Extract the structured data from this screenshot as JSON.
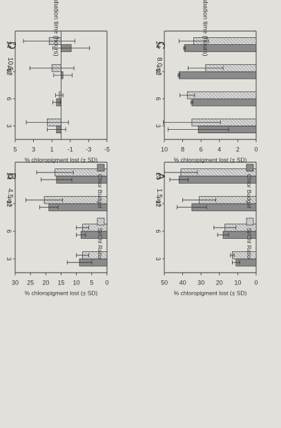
{
  "colors": {
    "gray_bar": "#8a8a8a",
    "hatch_bar": "#cfcfcf",
    "ink": "#333333",
    "paper": "#e2e0da"
  },
  "chart_data": [
    {
      "type": "bar",
      "panel": "A",
      "concentration": "1.5",
      "unit": "µg/l",
      "categories": [
        "3",
        "6",
        "12",
        "24"
      ],
      "series": [
        {
          "name": "Chlor Budget",
          "values": [
            11,
            18,
            35,
            42
          ],
          "err": [
            2,
            3,
            8,
            5
          ]
        },
        {
          "name": "Si/Chl Ratio",
          "values": [
            13,
            17,
            31,
            41
          ],
          "err": [
            1,
            6,
            9,
            9
          ]
        }
      ],
      "ylim": [
        0,
        50
      ],
      "yticks": [
        "0",
        "10",
        "20",
        "30",
        "40",
        "50"
      ],
      "ylabel": "% chloropigment lost (± SD)",
      "xlabel": ""
    },
    {
      "type": "bar",
      "panel": "B",
      "concentration": "4.5",
      "unit": "µg/l",
      "categories": [
        "3",
        "6",
        "12",
        "24"
      ],
      "series": [
        {
          "name": "Chlor Budget",
          "values": [
            9,
            8.5,
            19,
            16.5
          ],
          "err": [
            4,
            1.5,
            3,
            5
          ]
        },
        {
          "name": "Si/Chl Ratio",
          "values": [
            8,
            8,
            20.5,
            17
          ],
          "err": [
            2,
            2,
            6,
            6
          ]
        }
      ],
      "ylim": [
        0,
        30
      ],
      "yticks": [
        "0",
        "5",
        "10",
        "15",
        "20",
        "25",
        "30"
      ],
      "ylabel": "% chloropigment lost (± SD)",
      "xlabel": ""
    },
    {
      "type": "bar",
      "panel": "C",
      "concentration": "8.0",
      "unit": "µg/l",
      "categories": [
        "3",
        "6",
        "12",
        "24"
      ],
      "series": [
        {
          "name": "Chlor Budget",
          "values": [
            6.3,
            7.0,
            8.4,
            7.8
          ],
          "err": [
            3.3,
            0.1,
            0.1,
            0.1
          ]
        },
        {
          "name": "Si/Chl Ratio",
          "values": [
            7.0,
            7.5,
            5.5,
            6.8
          ],
          "err": [
            3.1,
            0.8,
            1.9,
            1.6
          ]
        }
      ],
      "ylim": [
        0,
        10
      ],
      "yticks": [
        "0",
        "2",
        "4",
        "6",
        "8",
        "10"
      ],
      "ylabel": "% chloropigment lost (± SD)",
      "xlabel": "Incubation time (hours)"
    },
    {
      "type": "bar",
      "panel": "D",
      "concentration": "10.5",
      "unit": "µg/l",
      "categories": [
        "3",
        "6",
        "12",
        "24"
      ],
      "series": [
        {
          "name": "Chlor Budget",
          "values": [
            0.5,
            0.5,
            -0.2,
            -1.1
          ],
          "err": [
            1.0,
            0.4,
            1.0,
            2.0
          ],
          "err_dir": "down"
        },
        {
          "name": "Si/Chl Ratio",
          "values": [
            1.5,
            0.2,
            1.0,
            1.3
          ],
          "err": [
            2.3,
            0.4,
            2.4,
            2.8
          ]
        }
      ],
      "ylim": [
        -5,
        5
      ],
      "yticks": [
        "-5",
        "-3",
        "-1",
        "1",
        "3",
        "5"
      ],
      "ylabel": "% chloropigment lost (± SD)",
      "xlabel": "Incubation time (hours)"
    }
  ]
}
